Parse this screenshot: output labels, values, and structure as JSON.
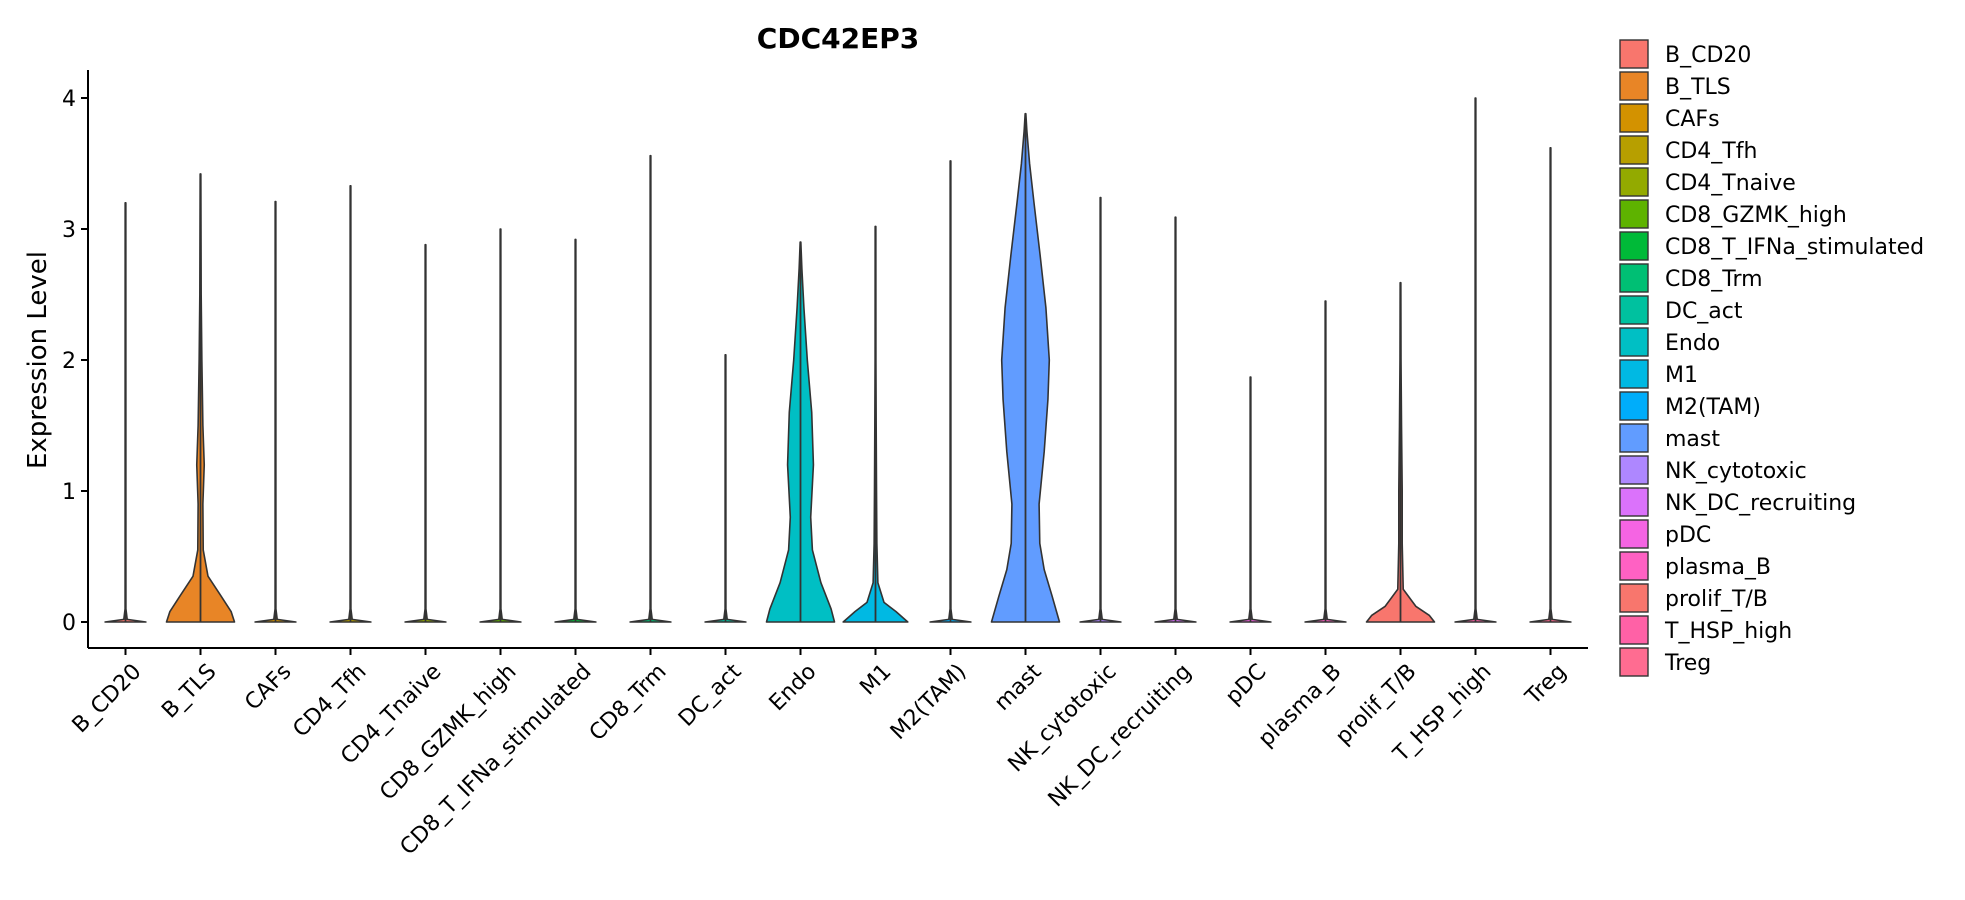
{
  "chart_data": {
    "type": "violin",
    "title": "CDC42EP3",
    "xlabel": "",
    "ylabel": "Expression Level",
    "ylim": [
      -0.2,
      4.2
    ],
    "yticks": [
      0,
      1,
      2,
      3,
      4
    ],
    "grid": false,
    "legend_position": "right",
    "categories": [
      "B_CD20",
      "B_TLS",
      "CAFs",
      "CD4_Tfh",
      "CD4_Tnaive",
      "CD8_GZMK_high",
      "CD8_T_IFNa_stimulated",
      "CD8_Trm",
      "DC_act",
      "Endo",
      "M1",
      "M2(TAM)",
      "mast",
      "NK_cytotoxic",
      "NK_DC_recruiting",
      "pDC",
      "plasma_B",
      "prolif_T/B",
      "T_HSP_high",
      "Treg"
    ],
    "colors": [
      "#F8766D",
      "#E88526",
      "#D39200",
      "#B79F00",
      "#93AA00",
      "#5EB300",
      "#00BA38",
      "#00BF74",
      "#00C19F",
      "#00BFC4",
      "#00B9E3",
      "#00ADFA",
      "#619CFF",
      "#AE87FF",
      "#DB72FB",
      "#F564E3",
      "#FF61C3",
      "#F8766D",
      "#FF61A6",
      "#FF6C91"
    ],
    "series": [
      {
        "max": 3.2,
        "profile": [
          [
            0,
            0.6
          ],
          [
            0.02,
            0.05
          ],
          [
            0.1,
            0.012
          ],
          [
            3.2,
            0.01
          ]
        ]
      },
      {
        "max": 3.42,
        "profile": [
          [
            0,
            1.0
          ],
          [
            0.08,
            0.9
          ],
          [
            0.2,
            0.6
          ],
          [
            0.35,
            0.22
          ],
          [
            0.55,
            0.08
          ],
          [
            0.9,
            0.07
          ],
          [
            1.2,
            0.11
          ],
          [
            1.5,
            0.07
          ],
          [
            2.0,
            0.04
          ],
          [
            2.5,
            0.02
          ],
          [
            3.42,
            0.01
          ]
        ]
      },
      {
        "max": 3.21,
        "profile": [
          [
            0,
            0.6
          ],
          [
            0.02,
            0.05
          ],
          [
            0.1,
            0.012
          ],
          [
            3.21,
            0.01
          ]
        ]
      },
      {
        "max": 3.33,
        "profile": [
          [
            0,
            0.6
          ],
          [
            0.02,
            0.05
          ],
          [
            0.1,
            0.012
          ],
          [
            3.33,
            0.01
          ]
        ]
      },
      {
        "max": 2.88,
        "profile": [
          [
            0,
            0.6
          ],
          [
            0.02,
            0.05
          ],
          [
            0.1,
            0.012
          ],
          [
            2.88,
            0.01
          ]
        ]
      },
      {
        "max": 3.0,
        "profile": [
          [
            0,
            0.6
          ],
          [
            0.02,
            0.05
          ],
          [
            0.1,
            0.012
          ],
          [
            3.0,
            0.01
          ]
        ]
      },
      {
        "max": 2.92,
        "profile": [
          [
            0,
            0.6
          ],
          [
            0.02,
            0.05
          ],
          [
            0.1,
            0.012
          ],
          [
            2.92,
            0.01
          ]
        ]
      },
      {
        "max": 3.56,
        "profile": [
          [
            0,
            0.6
          ],
          [
            0.02,
            0.05
          ],
          [
            0.1,
            0.012
          ],
          [
            3.56,
            0.01
          ]
        ]
      },
      {
        "max": 2.04,
        "profile": [
          [
            0,
            0.6
          ],
          [
            0.02,
            0.05
          ],
          [
            0.1,
            0.012
          ],
          [
            2.04,
            0.01
          ]
        ]
      },
      {
        "max": 2.9,
        "profile": [
          [
            0,
            1.0
          ],
          [
            0.1,
            0.9
          ],
          [
            0.3,
            0.6
          ],
          [
            0.55,
            0.35
          ],
          [
            0.8,
            0.3
          ],
          [
            1.2,
            0.38
          ],
          [
            1.6,
            0.33
          ],
          [
            2.0,
            0.2
          ],
          [
            2.4,
            0.1
          ],
          [
            2.7,
            0.04
          ],
          [
            2.9,
            0.01
          ]
        ]
      },
      {
        "max": 3.02,
        "profile": [
          [
            0,
            0.95
          ],
          [
            0.08,
            0.6
          ],
          [
            0.15,
            0.25
          ],
          [
            0.3,
            0.07
          ],
          [
            0.6,
            0.04
          ],
          [
            1.0,
            0.03
          ],
          [
            1.5,
            0.02
          ],
          [
            2.0,
            0.012
          ],
          [
            3.02,
            0.01
          ]
        ]
      },
      {
        "max": 3.52,
        "profile": [
          [
            0,
            0.6
          ],
          [
            0.02,
            0.05
          ],
          [
            0.1,
            0.012
          ],
          [
            3.52,
            0.01
          ]
        ]
      },
      {
        "max": 3.88,
        "profile": [
          [
            0,
            1.0
          ],
          [
            0.2,
            0.78
          ],
          [
            0.4,
            0.55
          ],
          [
            0.6,
            0.42
          ],
          [
            0.9,
            0.4
          ],
          [
            1.3,
            0.55
          ],
          [
            1.7,
            0.66
          ],
          [
            2.0,
            0.7
          ],
          [
            2.4,
            0.6
          ],
          [
            2.8,
            0.43
          ],
          [
            3.2,
            0.25
          ],
          [
            3.5,
            0.12
          ],
          [
            3.75,
            0.04
          ],
          [
            3.88,
            0.01
          ]
        ]
      },
      {
        "max": 3.24,
        "profile": [
          [
            0,
            0.6
          ],
          [
            0.02,
            0.05
          ],
          [
            0.1,
            0.012
          ],
          [
            3.24,
            0.01
          ]
        ]
      },
      {
        "max": 3.09,
        "profile": [
          [
            0,
            0.6
          ],
          [
            0.02,
            0.05
          ],
          [
            0.1,
            0.012
          ],
          [
            3.09,
            0.01
          ]
        ]
      },
      {
        "max": 1.87,
        "profile": [
          [
            0,
            0.6
          ],
          [
            0.02,
            0.05
          ],
          [
            0.1,
            0.012
          ],
          [
            1.87,
            0.01
          ]
        ]
      },
      {
        "max": 2.45,
        "profile": [
          [
            0,
            0.6
          ],
          [
            0.02,
            0.05
          ],
          [
            0.1,
            0.012
          ],
          [
            2.45,
            0.01
          ]
        ]
      },
      {
        "max": 2.59,
        "profile": [
          [
            0,
            1.0
          ],
          [
            0.05,
            0.85
          ],
          [
            0.12,
            0.45
          ],
          [
            0.25,
            0.08
          ],
          [
            0.6,
            0.05
          ],
          [
            1.0,
            0.05
          ],
          [
            1.5,
            0.03
          ],
          [
            2.0,
            0.015
          ],
          [
            2.59,
            0.01
          ]
        ]
      },
      {
        "max": 4.0,
        "profile": [
          [
            0,
            0.6
          ],
          [
            0.02,
            0.05
          ],
          [
            0.1,
            0.012
          ],
          [
            4.0,
            0.01
          ]
        ]
      },
      {
        "max": 3.62,
        "profile": [
          [
            0,
            0.6
          ],
          [
            0.02,
            0.05
          ],
          [
            0.1,
            0.012
          ],
          [
            3.62,
            0.01
          ]
        ]
      }
    ]
  }
}
